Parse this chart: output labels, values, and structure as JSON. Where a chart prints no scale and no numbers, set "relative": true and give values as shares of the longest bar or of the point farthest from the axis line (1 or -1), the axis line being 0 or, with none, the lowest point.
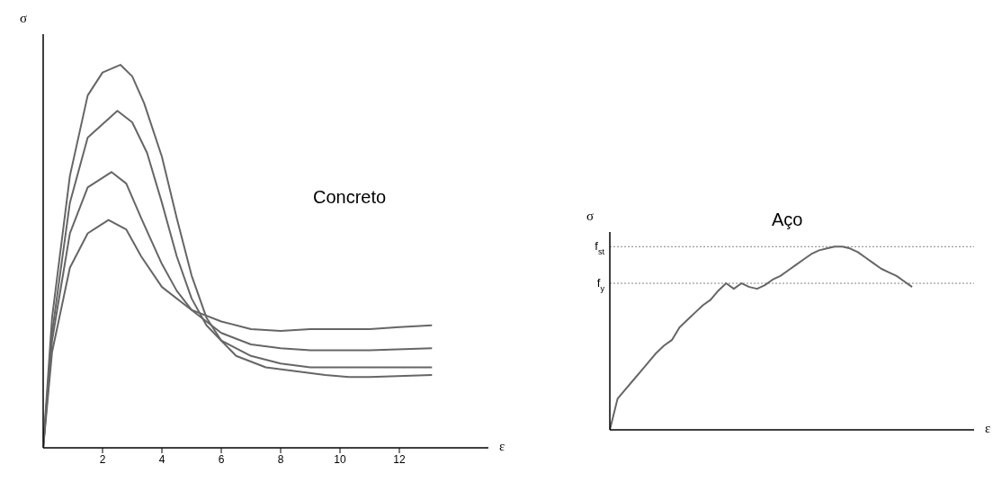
{
  "chart_data": [
    {
      "type": "line",
      "relative": true,
      "xlabel": "ε",
      "ylabel": "σ",
      "xlim": [
        0,
        15
      ],
      "xticks": [
        2,
        4,
        6,
        8,
        10,
        12
      ],
      "tick_labels": "x",
      "annotations": [
        "Concreto"
      ],
      "series": [
        {
          "color": "#666666",
          "x": [
            0,
            0.3,
            0.9,
            1.5,
            2.0,
            2.6,
            3.0,
            3.4,
            4.0,
            4.5,
            5.0,
            5.5,
            6.0,
            6.5,
            7.5,
            8.5,
            9.5,
            10.3,
            11,
            13.1
          ],
          "values": [
            0,
            0.34,
            0.71,
            0.92,
            0.98,
            1,
            0.97,
            0.9,
            0.76,
            0.6,
            0.45,
            0.34,
            0.28,
            0.24,
            0.21,
            0.2,
            0.19,
            0.185,
            0.185,
            0.19
          ]
        },
        {
          "color": "#666666",
          "x": [
            0,
            0.3,
            0.9,
            1.5,
            2.5,
            3.0,
            3.5,
            4.0,
            4.5,
            5.0,
            5.5,
            6.0,
            7,
            8,
            9,
            10,
            11,
            13.1
          ],
          "values": [
            0,
            0.3,
            0.64,
            0.81,
            0.88,
            0.85,
            0.77,
            0.64,
            0.5,
            0.39,
            0.32,
            0.28,
            0.24,
            0.22,
            0.21,
            0.21,
            0.21,
            0.21
          ]
        },
        {
          "color": "#666666",
          "x": [
            0,
            0.3,
            0.9,
            1.5,
            2.3,
            2.8,
            3.3,
            4,
            4.5,
            5,
            5.5,
            6,
            7,
            8,
            9,
            10,
            11,
            13.1
          ],
          "values": [
            0,
            0.28,
            0.56,
            0.68,
            0.72,
            0.69,
            0.6,
            0.48,
            0.41,
            0.36,
            0.33,
            0.3,
            0.27,
            0.26,
            0.255,
            0.255,
            0.255,
            0.26
          ]
        },
        {
          "color": "#666666",
          "x": [
            0,
            0.3,
            0.9,
            1.5,
            2.2,
            2.8,
            3.3,
            4,
            5,
            6,
            7,
            8,
            9,
            10,
            11,
            12,
            13.1
          ],
          "values": [
            0,
            0.25,
            0.47,
            0.56,
            0.595,
            0.57,
            0.5,
            0.42,
            0.36,
            0.33,
            0.31,
            0.305,
            0.31,
            0.31,
            0.31,
            0.315,
            0.32
          ]
        }
      ]
    },
    {
      "type": "line",
      "relative": true,
      "xlabel": "ε",
      "ylabel": "σ",
      "tick_labels": false,
      "annotations": [
        "Aço"
      ],
      "categories": [
        null,
        null,
        null,
        null,
        null,
        null,
        null,
        null,
        null,
        null,
        null,
        null,
        null,
        null,
        null,
        null,
        null,
        null,
        null,
        null,
        null,
        null,
        null,
        null,
        null,
        null,
        null,
        null,
        null,
        null,
        null,
        null,
        null,
        null,
        null,
        null,
        null,
        null,
        null,
        null
      ],
      "series": [
        {
          "color": "#666666",
          "values": [
            0,
            0.17,
            0.22,
            0.27,
            0.32,
            0.37,
            0.42,
            0.46,
            0.49,
            0.56,
            0.6,
            0.64,
            0.68,
            0.71,
            0.76,
            0.8,
            0.77,
            0.8,
            0.78,
            0.77,
            0.79,
            0.82,
            0.84,
            0.87,
            0.9,
            0.93,
            0.96,
            0.98,
            0.99,
            1,
            1,
            0.99,
            0.97,
            0.94,
            0.91,
            0.88,
            0.86,
            0.84,
            0.81,
            0.78
          ]
        }
      ],
      "ref_lines": [
        {
          "axis": "y",
          "value": 1,
          "label": "f$_{st}$",
          "color": "#666666",
          "line_style": "dotted"
        },
        {
          "axis": "y",
          "value": 0.8,
          "label": "f$_{y}$",
          "color": "#666666",
          "line_style": "dotted"
        }
      ]
    }
  ]
}
